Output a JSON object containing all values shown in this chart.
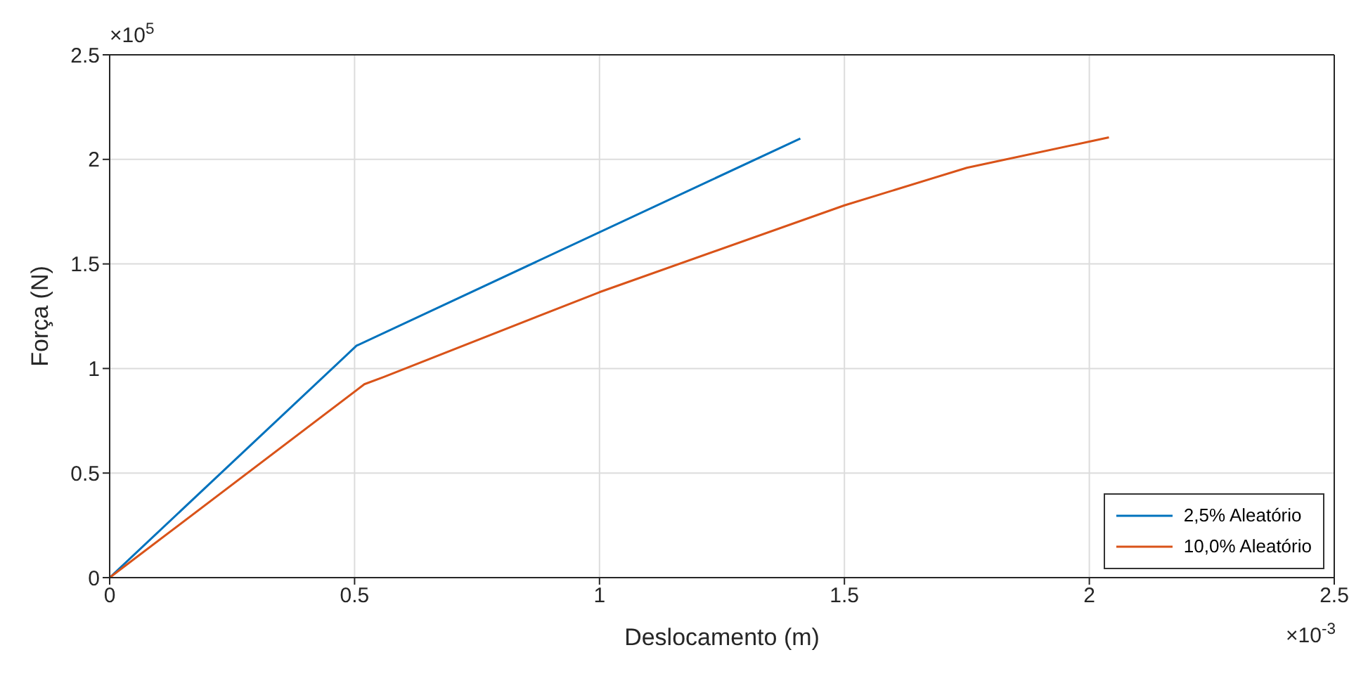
{
  "chart_data": {
    "type": "line",
    "xlabel": "Deslocamento (m)",
    "ylabel": "Força (N)",
    "xlim": [
      0,
      2.5
    ],
    "xticks": [
      0,
      0.5,
      1,
      1.5,
      2,
      2.5
    ],
    "ylim": [
      0,
      2.5
    ],
    "yticks": [
      0,
      0.5,
      1,
      1.5,
      2,
      2.5
    ],
    "annotations": [
      "×10$^{5}$",
      "×10$^{-3}$"
    ],
    "grid": true,
    "legend": "bottom right",
    "marker": "none",
    "line_style": "solid",
    "series": [
      {
        "name": "2,5% Aleatório",
        "color": "#0072bd",
        "x": [
          0,
          0.504,
          1.41
        ],
        "values": [
          0,
          1.109,
          2.1
        ]
      },
      {
        "name": "10,0% Aleatório",
        "color": "#d95319",
        "x": [
          0,
          0.52,
          0.56,
          1,
          1.5,
          1.75,
          2,
          2.04
        ],
        "values": [
          0,
          0.925,
          0.96,
          1.365,
          1.78,
          1.96,
          2.085,
          2.105
        ]
      }
    ]
  }
}
